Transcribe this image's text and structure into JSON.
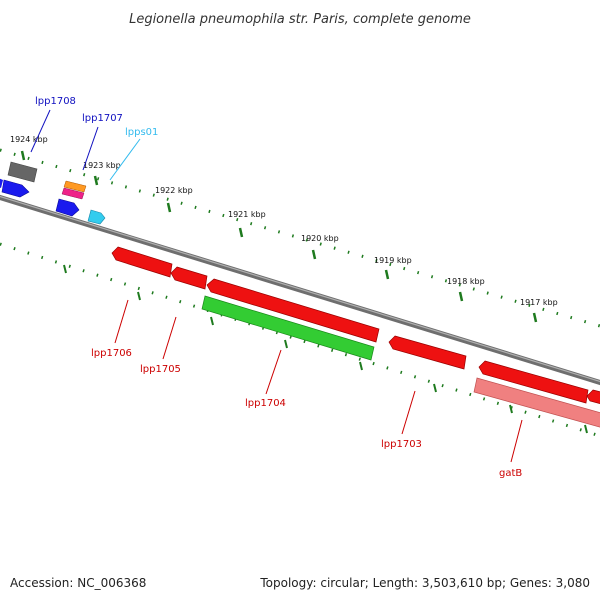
{
  "title": "Legionella pneumophila str. Paris, complete genome",
  "footer": {
    "accession": "Accession: NC_006368",
    "summary": "Topology: circular; Length: 3,503,610 bp; Genes: 3,080"
  },
  "colors": {
    "backbone": "#808080",
    "ticks": "#1e7a1e",
    "cds": "#ff0000",
    "cds_light": "#f08080",
    "gene_green": "#33cc33",
    "gene_blue": "#1a1aee",
    "gene_cyan": "#33ccee",
    "gene_gray": "#666666",
    "label_blue": "#1010c0",
    "label_cyan": "#33bbee",
    "label_red": "#cc0000"
  },
  "kbp_labels": [
    "1924 kbp",
    "1923 kbp",
    "1922 kbp",
    "1921 kbp",
    "1920 kbp",
    "1919 kbp",
    "1918 kbp",
    "1917 kbp"
  ],
  "genes_top": [
    {
      "name": "lpp1708",
      "color": "label_blue"
    },
    {
      "name": "lpp1707",
      "color": "label_blue"
    },
    {
      "name": "lpps01",
      "color": "label_cyan"
    }
  ],
  "genes_bottom": [
    {
      "name": "lpp1706",
      "color": "label_red"
    },
    {
      "name": "lpp1705",
      "color": "label_red"
    },
    {
      "name": "lpp1704",
      "color": "label_red"
    },
    {
      "name": "lpp1703",
      "color": "label_red"
    },
    {
      "name": "gatB",
      "color": "label_red"
    }
  ]
}
